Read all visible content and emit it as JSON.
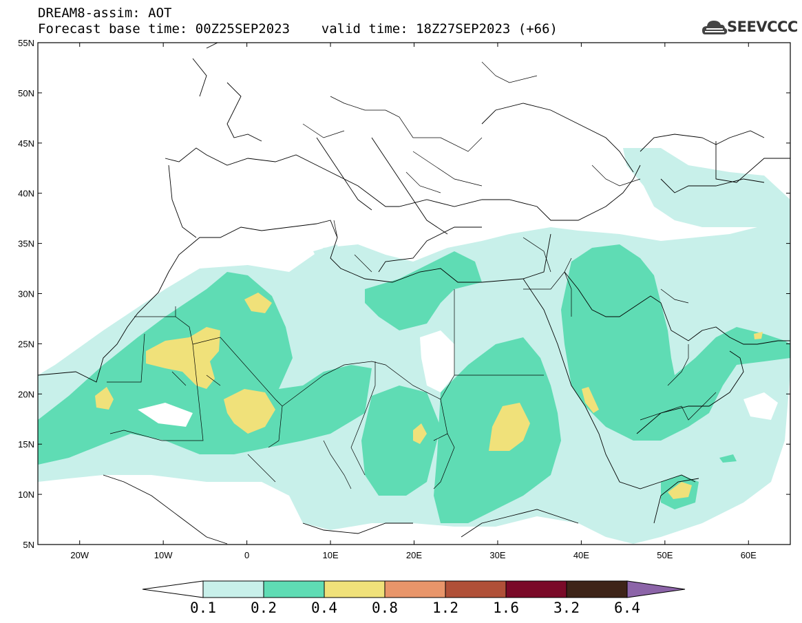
{
  "header": {
    "line1": "DREAM8-assim: AOT",
    "line2": "Forecast base time: 00Z25SEP2023    valid time: 18Z27SEP2023 (+66)"
  },
  "logo": {
    "text": "SEEVCCC",
    "icon": "cloud-icon"
  },
  "axes": {
    "lat_labels": [
      "55N",
      "50N",
      "45N",
      "40N",
      "35N",
      "30N",
      "25N",
      "20N",
      "15N",
      "10N",
      "5N"
    ],
    "lon_labels": [
      "20W",
      "10W",
      "0",
      "10E",
      "20E",
      "30E",
      "40E",
      "50E",
      "60E"
    ],
    "lat_range": [
      5,
      55
    ],
    "lon_range": [
      -25,
      65
    ]
  },
  "colorbar": {
    "levels": [
      "0.1",
      "0.2",
      "0.4",
      "0.8",
      "1.2",
      "1.6",
      "3.2",
      "6.4"
    ],
    "colors": [
      "#c8f0ea",
      "#5fdcb4",
      "#f0e17a",
      "#e8956a",
      "#b05038",
      "#7a0a28",
      "#3e2418",
      "#8c64a8"
    ],
    "under_color": "#ffffff",
    "over_color": "#8c64a8"
  }
}
